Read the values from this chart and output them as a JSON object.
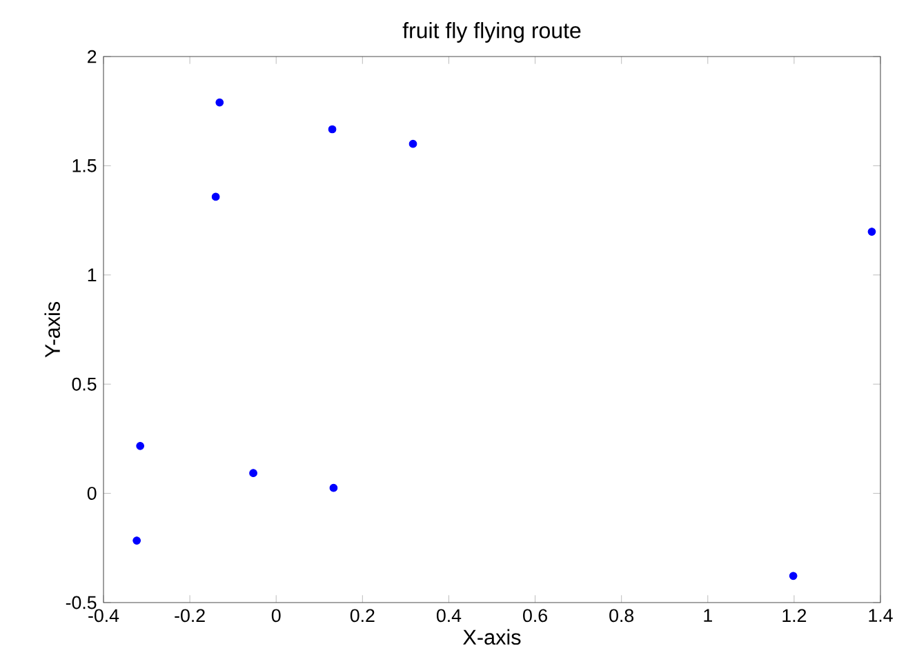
{
  "chart_data": {
    "type": "scatter",
    "title": "fruit fly flying route",
    "xlabel": "X-axis",
    "ylabel": "Y-axis",
    "x": [
      -0.131,
      -0.14,
      0.13,
      0.317,
      -0.315,
      -0.323,
      -0.053,
      0.133,
      1.38,
      1.198
    ],
    "values": [
      1.79,
      1.358,
      1.667,
      1.6,
      0.217,
      -0.216,
      0.093,
      0.025,
      1.198,
      -0.378
    ],
    "color": "#0000ff",
    "marker": "circle",
    "xlim": [
      -0.4,
      1.4
    ],
    "ylim": [
      -0.5,
      2
    ],
    "xticks": [
      -0.4,
      -0.2,
      0,
      0.2,
      0.4,
      0.6,
      0.8,
      1,
      1.2,
      1.4
    ],
    "yticks": [
      -0.5,
      0,
      0.5,
      1,
      1.5,
      2
    ],
    "grid": false
  }
}
